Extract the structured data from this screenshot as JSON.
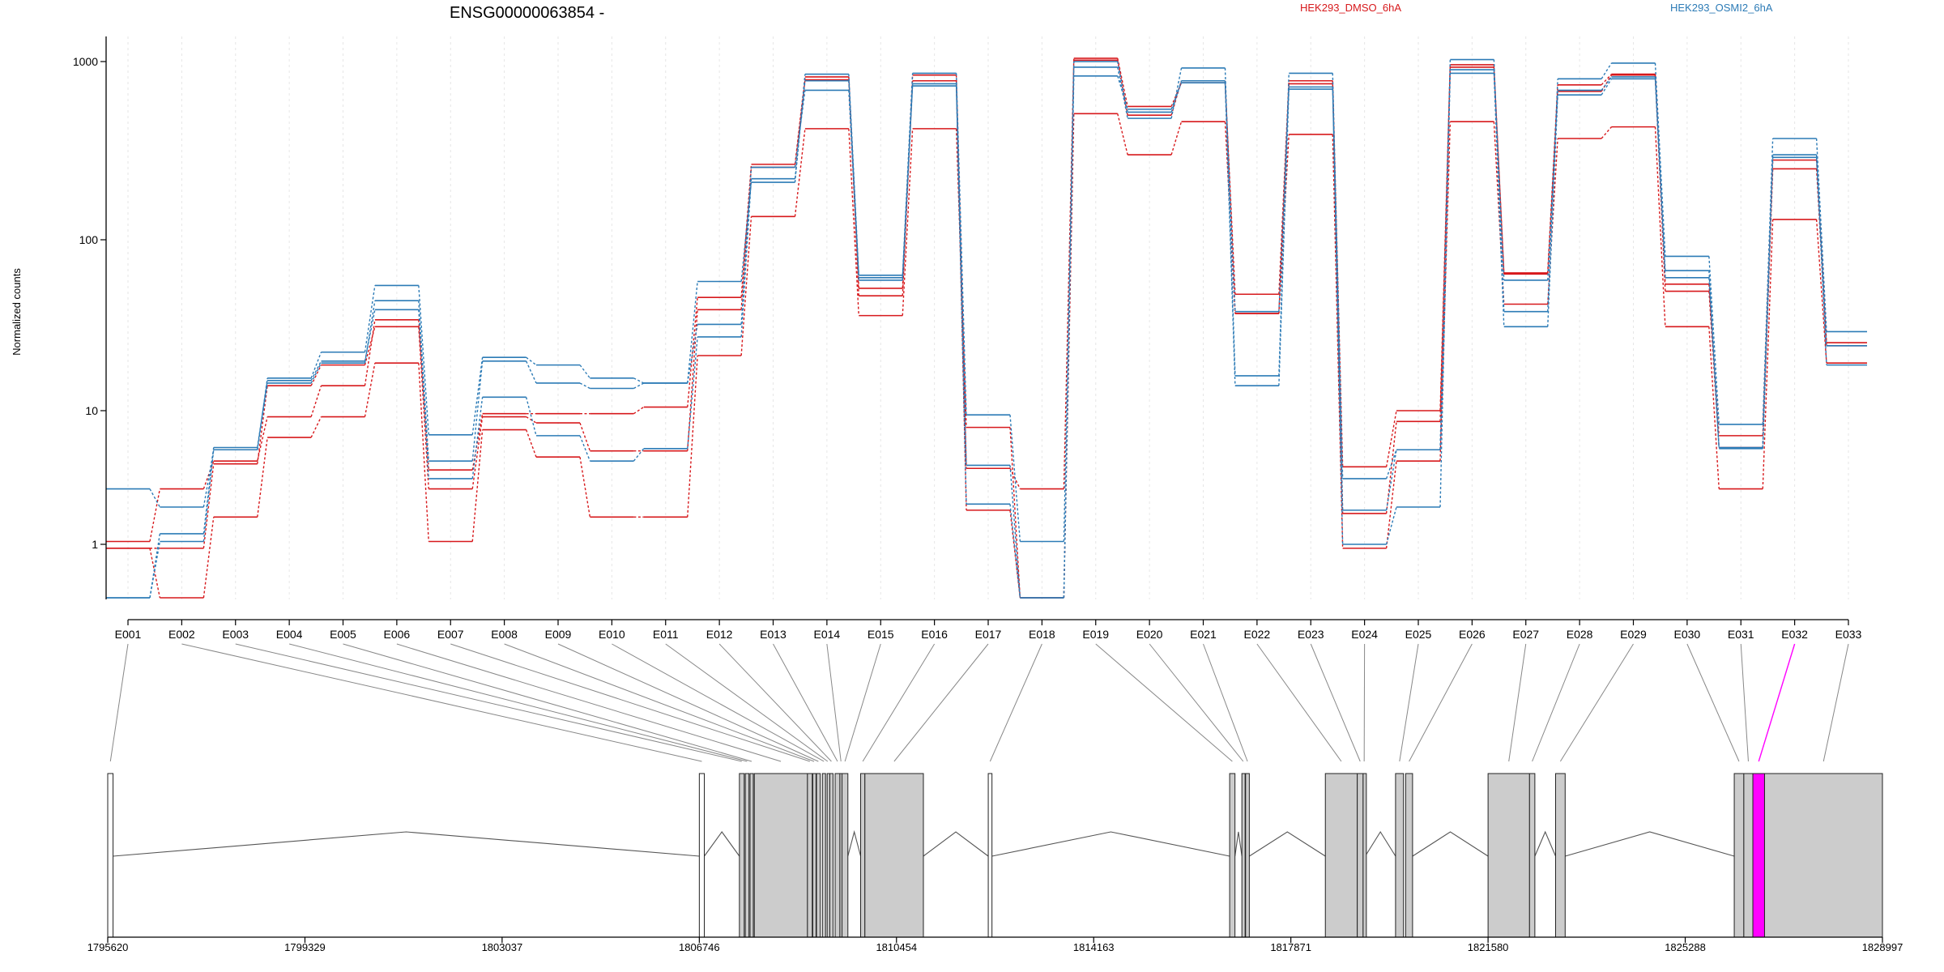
{
  "chart_data": {
    "type": "line",
    "title": "ENSG00000063854 -",
    "xlabel": "",
    "ylabel": "Normalized counts",
    "y_scale": "log",
    "ylim": [
      0.5,
      1100
    ],
    "y_ticks": [
      1,
      10,
      100,
      1000
    ],
    "y_tick_labels": [
      "1",
      "10",
      "100",
      "1000"
    ],
    "grid": "vertical dashed per exon",
    "legend_placement": "top",
    "legend": [
      {
        "label": "HEK293_DMSO_6hA",
        "color": "#d7191c"
      },
      {
        "label": "HEK293_OSMI2_6hA",
        "color": "#2c7bb6"
      }
    ],
    "categories": [
      "E001",
      "E002",
      "E003",
      "E004",
      "E005",
      "E006",
      "E007",
      "E008",
      "E009",
      "E010",
      "E011",
      "E012",
      "E013",
      "E014",
      "E015",
      "E016",
      "E017",
      "E018",
      "E019",
      "E020",
      "E021",
      "E022",
      "E023",
      "E024",
      "E025",
      "E026",
      "E027",
      "E028",
      "E029",
      "E030",
      "E031",
      "E032",
      "E033"
    ],
    "series": [
      {
        "group": "HEK293_DMSO_6hA",
        "color": "#d7191c",
        "values": [
          1.05,
          2.6,
          4.2,
          9,
          14,
          34,
          3.6,
          9.5,
          9.5,
          9.5,
          10.5,
          46,
          265,
          820,
          52,
          840,
          3.7,
          2.6,
          1050,
          560,
          760,
          48,
          780,
          3.8,
          10,
          960,
          64,
          740,
          850,
          55,
          6.5,
          280,
          25
        ]
      },
      {
        "group": "HEK293_DMSO_6hA",
        "color": "#d7191c",
        "values": [
          0.95,
          0.5,
          1.6,
          6.3,
          9,
          19,
          1.05,
          7.2,
          4.5,
          1.6,
          1.6,
          21,
          135,
          420,
          36,
          420,
          7.5,
          0.5,
          510,
          300,
          460,
          37,
          390,
          0.95,
          4.2,
          460,
          42,
          370,
          430,
          31,
          2.6,
          130,
          19
        ]
      },
      {
        "group": "HEK293_DMSO_6hA",
        "color": "#d7191c",
        "values": [
          0.95,
          0.95,
          4,
          14,
          18.5,
          31,
          2.6,
          9,
          8.1,
          5,
          5,
          39,
          255,
          790,
          47,
          780,
          1.8,
          0.5,
          1020,
          500,
          780,
          37,
          750,
          1.7,
          8.3,
          930,
          63,
          680,
          840,
          50,
          5.3,
          250,
          24
        ]
      },
      {
        "group": "HEK293_OSMI2_6hA",
        "color": "#2c7bb6",
        "values": [
          2.6,
          1.9,
          5.1,
          15.5,
          22,
          54,
          6.6,
          20.5,
          18.5,
          15.5,
          14.5,
          57,
          210,
          850,
          62,
          860,
          9.3,
          1.05,
          930,
          480,
          920,
          16,
          860,
          3.1,
          5.1,
          1030,
          38,
          800,
          980,
          80,
          7.9,
          370,
          29
        ]
      },
      {
        "group": "HEK293_OSMI2_6hA",
        "color": "#2c7bb6",
        "values": [
          0.5,
          1.05,
          5.1,
          14.5,
          19,
          44,
          4.2,
          19.5,
          14.5,
          13.5,
          14.5,
          32,
          255,
          690,
          58,
          730,
          3.9,
          0.5,
          830,
          540,
          760,
          14,
          700,
          1.8,
          5.1,
          860,
          31,
          650,
          800,
          60,
          5.3,
          300,
          18.5
        ]
      },
      {
        "group": "HEK293_OSMI2_6hA",
        "color": "#2c7bb6",
        "values": [
          0.5,
          1.2,
          5.3,
          15,
          19.5,
          39,
          3.1,
          12,
          6.5,
          4.2,
          5.2,
          27,
          220,
          780,
          60,
          750,
          2,
          0.5,
          1000,
          520,
          780,
          38,
          720,
          1,
          1.9,
          900,
          58,
          690,
          820,
          66,
          5.2,
          290,
          24
        ]
      }
    ],
    "highlighted_exon": "E032",
    "highlight_color": "#ff00ff",
    "genome_axis_ticks": [
      1795620,
      1799329,
      1803037,
      1806746,
      1810454,
      1814163,
      1817871,
      1821580,
      1825288,
      1828997
    ],
    "exon_coords": [
      [
        1795620,
        1795720
      ],
      [
        1806746,
        1806840
      ],
      [
        1807500,
        1807590
      ],
      [
        1807610,
        1807680
      ],
      [
        1807700,
        1807760
      ],
      [
        1807780,
        1808780
      ],
      [
        1808780,
        1808870
      ],
      [
        1808880,
        1808930
      ],
      [
        1808950,
        1809020
      ],
      [
        1809060,
        1809120
      ],
      [
        1809150,
        1809170
      ],
      [
        1809200,
        1809260
      ],
      [
        1809300,
        1809390
      ],
      [
        1809390,
        1809430
      ],
      [
        1809430,
        1809540
      ],
      [
        1809780,
        1809860
      ],
      [
        1809860,
        1810960
      ],
      [
        1812180,
        1812250
      ],
      [
        1816720,
        1816820
      ],
      [
        1816950,
        1817000
      ],
      [
        1817020,
        1817090
      ],
      [
        1818520,
        1819120
      ],
      [
        1819120,
        1819230
      ],
      [
        1819230,
        1819270
      ],
      [
        1819840,
        1819990
      ],
      [
        1820030,
        1820160
      ],
      [
        1821580,
        1822360
      ],
      [
        1822360,
        1822460
      ],
      [
        1822850,
        1823030
      ],
      [
        1826210,
        1826390
      ],
      [
        1826390,
        1826560
      ],
      [
        1826560,
        1826780
      ],
      [
        1826780,
        1828997
      ]
    ]
  }
}
